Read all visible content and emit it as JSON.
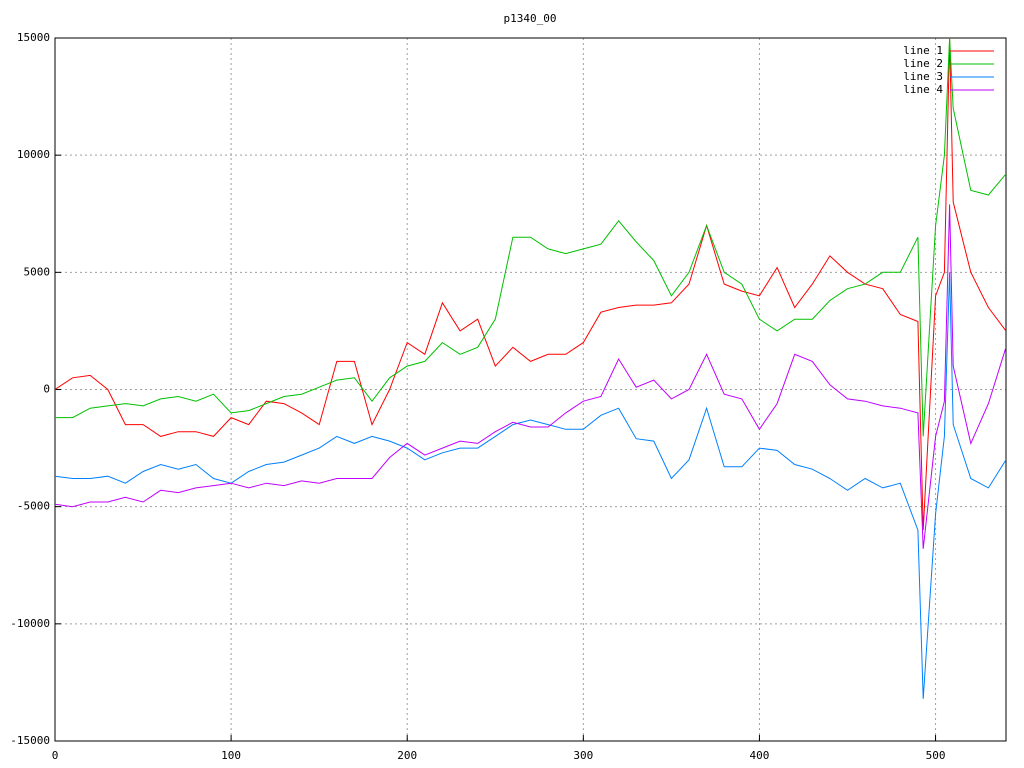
{
  "chart_data": {
    "type": "line",
    "title": "p1340_00",
    "x": [
      0,
      10,
      20,
      30,
      40,
      50,
      60,
      70,
      80,
      90,
      100,
      110,
      120,
      130,
      140,
      150,
      160,
      170,
      180,
      190,
      200,
      210,
      220,
      230,
      240,
      250,
      260,
      270,
      280,
      290,
      300,
      310,
      320,
      330,
      340,
      350,
      360,
      370,
      380,
      390,
      400,
      410,
      420,
      430,
      440,
      450,
      460,
      470,
      480,
      490,
      493,
      500,
      505,
      508,
      510,
      520,
      530,
      540
    ],
    "series": [
      {
        "name": "line 1",
        "color": "#ff0000",
        "values": [
          0,
          500,
          600,
          0,
          -1500,
          -1500,
          -2000,
          -1800,
          -1800,
          -2000,
          -1200,
          -1500,
          -500,
          -600,
          -1000,
          -1500,
          1200,
          1200,
          -1500,
          0,
          2000,
          1500,
          3700,
          2500,
          3000,
          1000,
          1800,
          1200,
          1500,
          1500,
          2000,
          3300,
          3500,
          3600,
          3600,
          3700,
          4500,
          7000,
          4500,
          4200,
          4000,
          5200,
          3500,
          4500,
          5700,
          5000,
          4500,
          4300,
          3200,
          2900,
          -6000,
          4000,
          5000,
          15000,
          8000,
          5000,
          3500,
          2500
        ]
      },
      {
        "name": "line 2",
        "color": "#00c000",
        "values": [
          -1200,
          -1200,
          -800,
          -700,
          -600,
          -700,
          -400,
          -300,
          -500,
          -200,
          -1000,
          -900,
          -600,
          -300,
          -200,
          100,
          400,
          500,
          -500,
          500,
          1000,
          1200,
          2000,
          1500,
          1800,
          3000,
          6500,
          6500,
          6000,
          5800,
          6000,
          6200,
          7200,
          6300,
          5500,
          4000,
          5000,
          7000,
          5000,
          4500,
          3000,
          2500,
          3000,
          3000,
          3800,
          4300,
          4500,
          5000,
          5000,
          6500,
          -2000,
          7000,
          10000,
          15000,
          12000,
          8500,
          8300,
          9200
        ]
      },
      {
        "name": "line 3",
        "color": "#0080ff",
        "values": [
          -3700,
          -3800,
          -3800,
          -3700,
          -4000,
          -3500,
          -3200,
          -3400,
          -3200,
          -3800,
          -4000,
          -3500,
          -3200,
          -3100,
          -2800,
          -2500,
          -2000,
          -2300,
          -2000,
          -2200,
          -2500,
          -3000,
          -2700,
          -2500,
          -2500,
          -2000,
          -1500,
          -1300,
          -1500,
          -1700,
          -1700,
          -1100,
          -800,
          -2100,
          -2200,
          -3800,
          -3000,
          -800,
          -3300,
          -3300,
          -2500,
          -2600,
          -3200,
          -3400,
          -3800,
          -4300,
          -3800,
          -4200,
          -4000,
          -6000,
          -13200,
          -5300,
          -2000,
          5000,
          -1500,
          -3800,
          -4200,
          -3000
        ]
      },
      {
        "name": "line 4",
        "color": "#c000ff",
        "values": [
          -4900,
          -5000,
          -4800,
          -4800,
          -4600,
          -4800,
          -4300,
          -4400,
          -4200,
          -4100,
          -4000,
          -4200,
          -4000,
          -4100,
          -3900,
          -4000,
          -3800,
          -3800,
          -3800,
          -2900,
          -2300,
          -2800,
          -2500,
          -2200,
          -2300,
          -1800,
          -1400,
          -1600,
          -1600,
          -1000,
          -500,
          -300,
          1300,
          100,
          400,
          -400,
          0,
          1500,
          -200,
          -400,
          -1700,
          -600,
          1500,
          1200,
          200,
          -400,
          -500,
          -700,
          -800,
          -1000,
          -6800,
          -2000,
          -500,
          7900,
          1000,
          -2300,
          -600,
          1800
        ]
      }
    ],
    "xlim": [
      0,
      540
    ],
    "ylim": [
      -15000,
      15000
    ],
    "xticks": [
      0,
      100,
      200,
      300,
      400,
      500
    ],
    "yticks": [
      -15000,
      -10000,
      -5000,
      0,
      5000,
      10000,
      15000
    ],
    "grid": true,
    "legend": "top-right"
  }
}
